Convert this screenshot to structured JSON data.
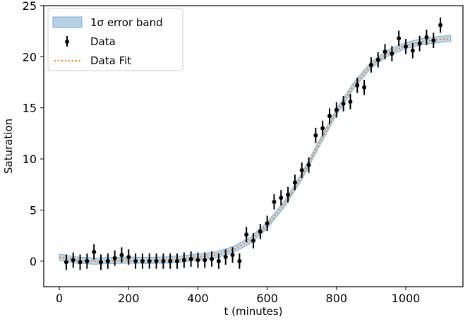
{
  "chart_data": {
    "type": "line",
    "title": "",
    "xlabel": "t (minutes)",
    "ylabel": "Saturation",
    "xlim": [
      -45,
      1165
    ],
    "ylim": [
      -2.5,
      25
    ],
    "xticks": [
      0,
      200,
      400,
      600,
      800,
      1000
    ],
    "yticks": [
      0,
      5,
      10,
      15,
      20,
      25
    ],
    "legend_position": "top-left",
    "legend": [
      "1σ error band",
      "Data",
      "Data Fit"
    ],
    "colors": {
      "band_fill": "#a9c9e2",
      "band_edge": "#7aaed3",
      "fit_line": "#ff7f0e",
      "data": "#000000"
    },
    "data": {
      "name": "Data",
      "x": [
        20,
        40,
        60,
        80,
        100,
        120,
        140,
        160,
        180,
        200,
        220,
        240,
        260,
        280,
        300,
        320,
        340,
        360,
        380,
        400,
        420,
        440,
        460,
        480,
        500,
        520,
        540,
        560,
        580,
        600,
        620,
        640,
        660,
        680,
        700,
        720,
        740,
        760,
        780,
        800,
        820,
        840,
        860,
        880,
        900,
        920,
        940,
        960,
        980,
        1000,
        1020,
        1040,
        1060,
        1080,
        1100
      ],
      "y": [
        -0.1,
        0.1,
        -0.1,
        0.0,
        0.9,
        -0.1,
        0.0,
        0.3,
        0.6,
        0.4,
        0.0,
        0.0,
        0.0,
        0.0,
        0.0,
        0.0,
        0.0,
        0.1,
        0.2,
        0.1,
        0.1,
        0.2,
        0.0,
        0.4,
        0.6,
        0.0,
        2.6,
        2.0,
        2.9,
        3.7,
        5.8,
        6.2,
        6.5,
        7.7,
        8.9,
        9.4,
        12.3,
        13.0,
        14.2,
        14.8,
        15.4,
        15.6,
        17.2,
        17.0,
        19.2,
        19.7,
        20.5,
        20.3,
        21.8,
        21.0,
        20.6,
        21.3,
        21.9,
        21.6,
        23.1
      ],
      "yerr": 0.75
    },
    "fit": {
      "name": "Data Fit",
      "x": [
        0,
        50,
        100,
        150,
        200,
        250,
        300,
        350,
        400,
        450,
        500,
        550,
        600,
        650,
        700,
        750,
        800,
        850,
        900,
        950,
        1000,
        1050,
        1100,
        1130
      ],
      "y": [
        0.4,
        0.1,
        0.0,
        0.05,
        0.1,
        0.05,
        0.1,
        0.2,
        0.4,
        0.6,
        1.1,
        2.0,
        3.5,
        5.6,
        8.3,
        11.5,
        14.6,
        17.2,
        19.2,
        20.4,
        21.1,
        21.5,
        21.7,
        21.8
      ],
      "band": 0.3
    }
  }
}
